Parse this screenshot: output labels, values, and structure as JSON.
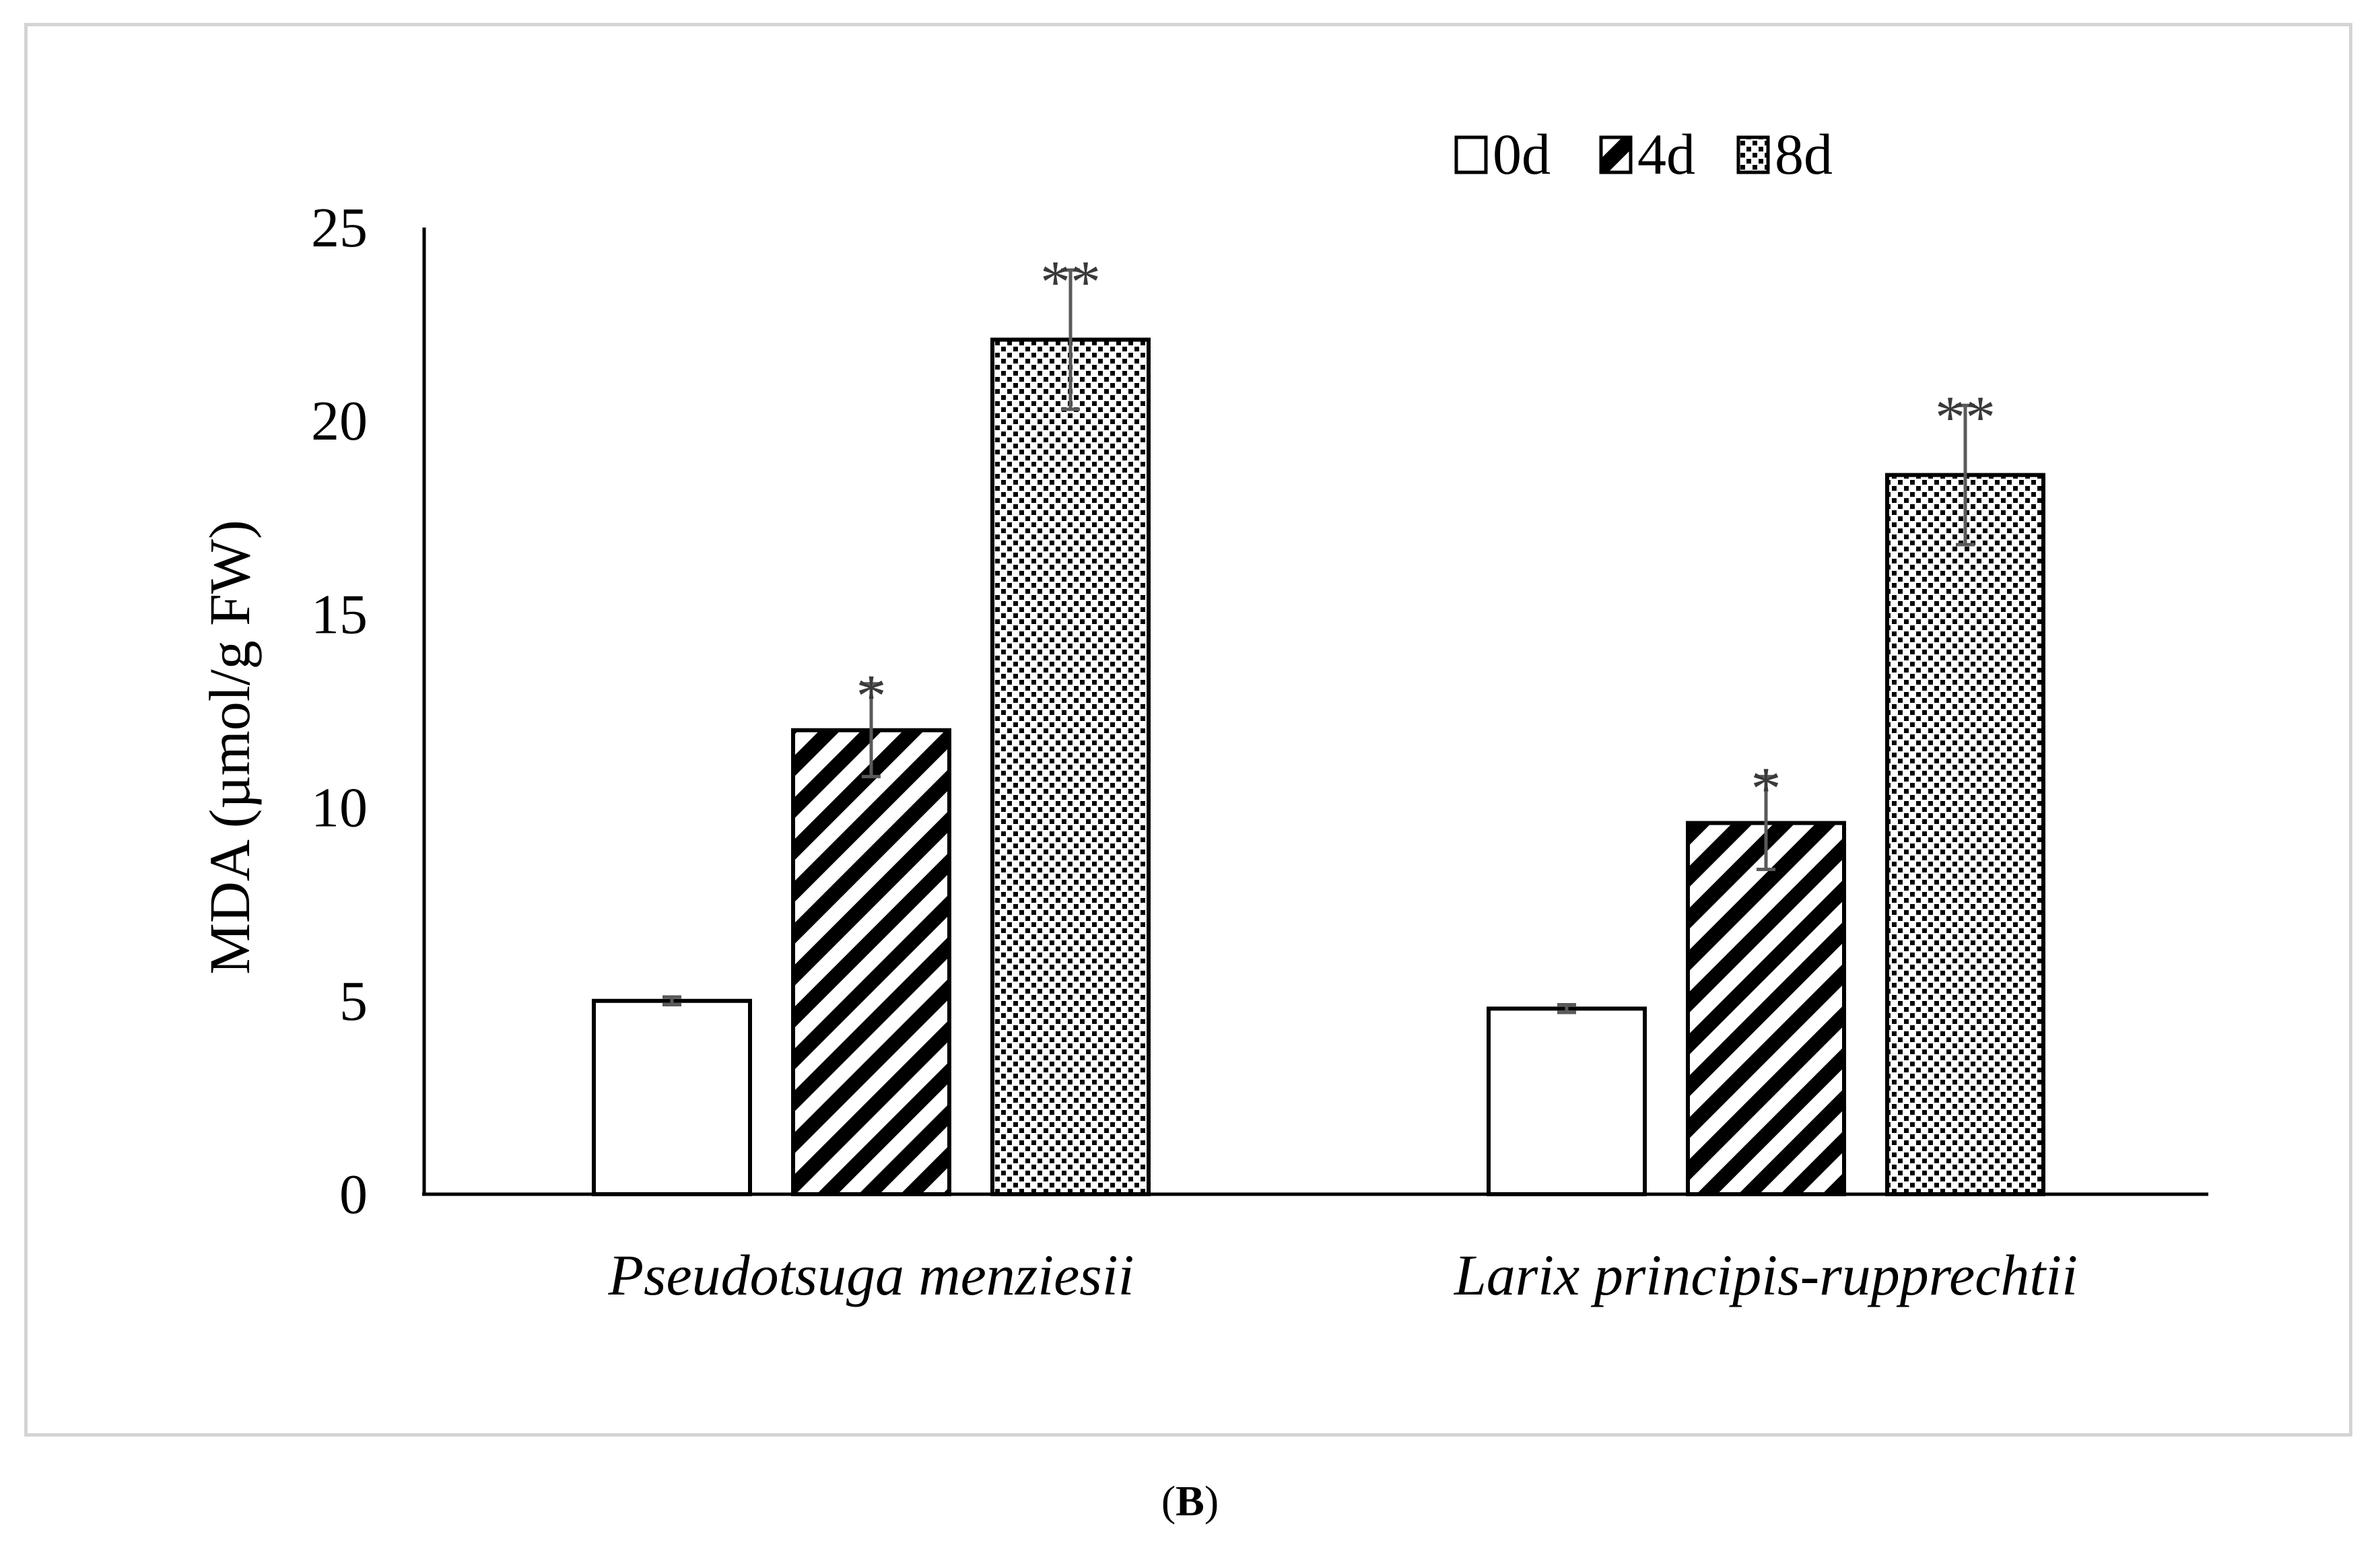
{
  "chart_data": {
    "type": "bar",
    "categories": [
      "Pseudotsuga menziesii",
      "Larix principis-rupprechtii"
    ],
    "series": [
      {
        "name": "0d",
        "pattern": "none",
        "values": [
          5.0,
          4.8
        ],
        "errors": [
          0.1,
          0.1
        ],
        "significance": [
          "",
          ""
        ]
      },
      {
        "name": "4d",
        "pattern": "diagonal",
        "values": [
          12.0,
          9.6
        ],
        "errors": [
          1.2,
          1.2
        ],
        "significance": [
          "*",
          "*"
        ]
      },
      {
        "name": "8d",
        "pattern": "dots",
        "values": [
          22.1,
          18.6
        ],
        "errors": [
          1.8,
          1.8
        ],
        "significance": [
          "**",
          "**"
        ]
      }
    ],
    "ylabel": "MDA (µmol/g FW)",
    "xlabel": "",
    "ylim": [
      0,
      25
    ],
    "yticks": [
      "0",
      "5",
      "10",
      "15",
      "20",
      "25"
    ],
    "legend_position": "top-right",
    "grid": false
  },
  "panel_label": "B",
  "colors": {
    "bar_fill": "#ffffff",
    "bar_stroke": "#000000",
    "error_bar": "#5a5a5a",
    "frame": "#d4d4d4"
  }
}
